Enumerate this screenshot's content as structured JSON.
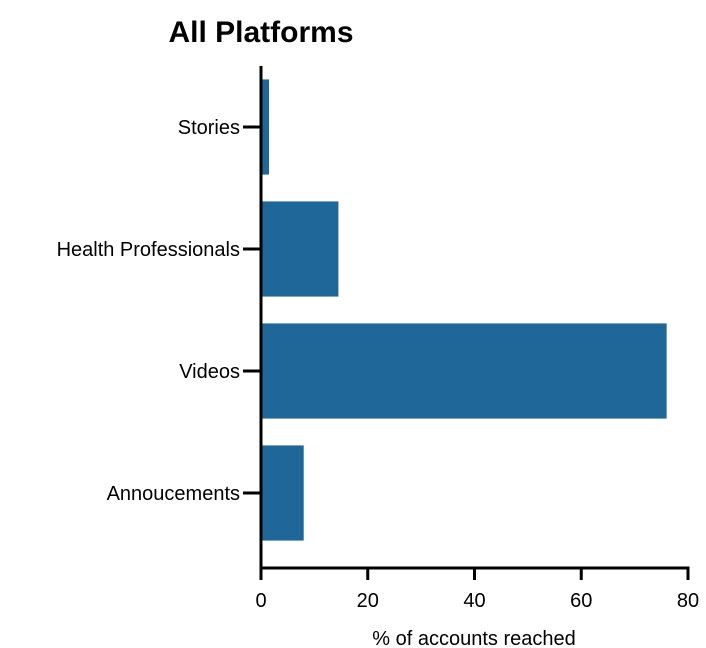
{
  "chart_data": {
    "type": "bar",
    "orientation": "horizontal",
    "title": "All Platforms",
    "xlabel": "% of accounts reached",
    "ylabel": "",
    "categories": [
      "Annoucements",
      "Videos",
      "Health Professionals",
      "Stories"
    ],
    "values": [
      8,
      76,
      14.5,
      1.5
    ],
    "xlim": [
      0,
      80
    ],
    "xticks": [
      0,
      20,
      40,
      60,
      80
    ],
    "bar_color": "#1f6799",
    "grid": false,
    "legend": "none"
  }
}
